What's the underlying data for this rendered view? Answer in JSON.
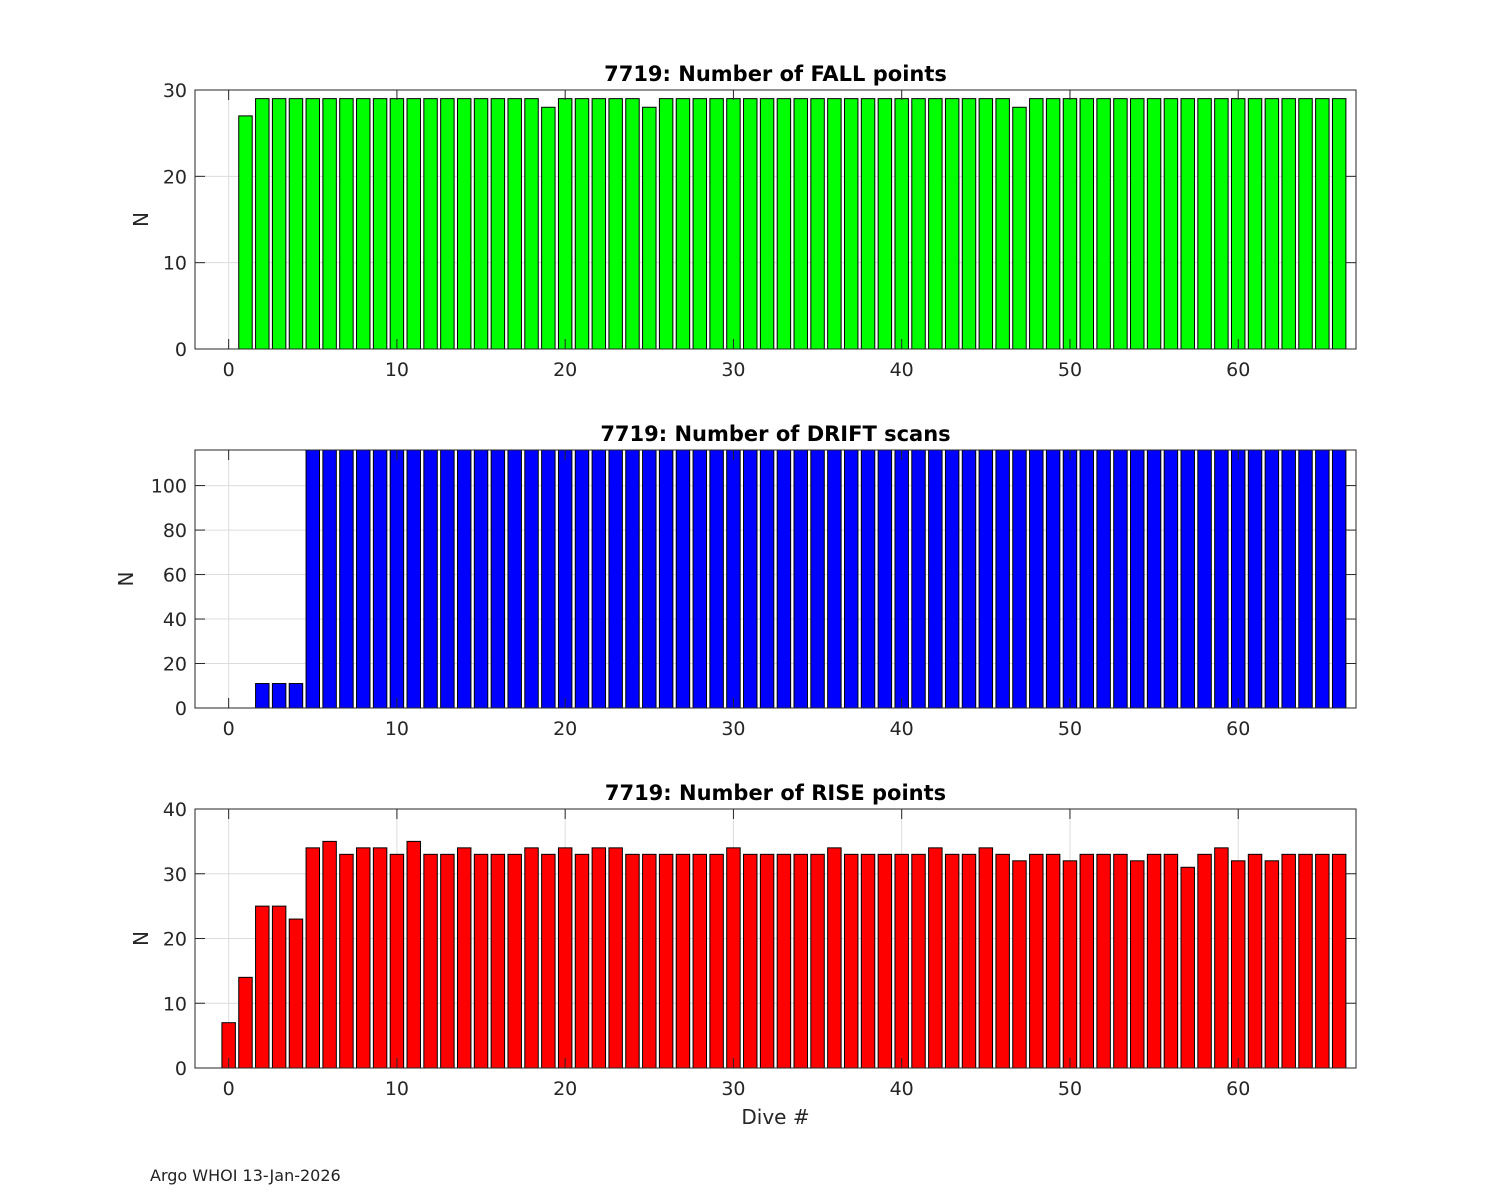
{
  "footer": "Argo WHOI 13-Jan-2026",
  "chart_data": [
    {
      "type": "bar",
      "title": "7719: Number of FALL points",
      "xlabel": "",
      "ylabel": "N",
      "xlim": [
        -2,
        67
      ],
      "ylim": [
        0,
        30
      ],
      "xticks": [
        0,
        10,
        20,
        30,
        40,
        50,
        60
      ],
      "yticks": [
        0,
        10,
        20,
        30
      ],
      "grid": true,
      "color": "#00ff00",
      "x": [
        1,
        2,
        3,
        4,
        5,
        6,
        7,
        8,
        9,
        10,
        11,
        12,
        13,
        14,
        15,
        16,
        17,
        18,
        19,
        20,
        21,
        22,
        23,
        24,
        25,
        26,
        27,
        28,
        29,
        30,
        31,
        32,
        33,
        34,
        35,
        36,
        37,
        38,
        39,
        40,
        41,
        42,
        43,
        44,
        45,
        46,
        47,
        48,
        49,
        50,
        51,
        52,
        53,
        54,
        55,
        56,
        57,
        58,
        59,
        60,
        61,
        62,
        63,
        64,
        65,
        66
      ],
      "values": [
        27,
        29,
        29,
        29,
        29,
        29,
        29,
        29,
        29,
        29,
        29,
        29,
        29,
        29,
        29,
        29,
        29,
        29,
        28,
        29,
        29,
        29,
        29,
        29,
        28,
        29,
        29,
        29,
        29,
        29,
        29,
        29,
        29,
        29,
        29,
        29,
        29,
        29,
        29,
        29,
        29,
        29,
        29,
        29,
        29,
        29,
        28,
        29,
        29,
        29,
        29,
        29,
        29,
        29,
        29,
        29,
        29,
        29,
        29,
        29,
        29,
        29,
        29,
        29,
        29,
        29
      ]
    },
    {
      "type": "bar",
      "title": "7719: Number of DRIFT scans",
      "xlabel": "",
      "ylabel": "N",
      "xlim": [
        -2,
        67
      ],
      "ylim": [
        0,
        116
      ],
      "xticks": [
        0,
        10,
        20,
        30,
        40,
        50,
        60
      ],
      "yticks": [
        0,
        20,
        40,
        60,
        80,
        100
      ],
      "grid": true,
      "color": "#0000ff",
      "x": [
        -1,
        0,
        1,
        2,
        3,
        4,
        5,
        6,
        7,
        8,
        9,
        10,
        11,
        12,
        13,
        14,
        15,
        16,
        17,
        18,
        19,
        20,
        21,
        22,
        23,
        24,
        25,
        26,
        27,
        28,
        29,
        30,
        31,
        32,
        33,
        34,
        35,
        36,
        37,
        38,
        39,
        40,
        41,
        42,
        43,
        44,
        45,
        46,
        47,
        48,
        49,
        50,
        51,
        52,
        53,
        54,
        55,
        56,
        57,
        58,
        59,
        60,
        61,
        62,
        63,
        64,
        65,
        66
      ],
      "values": [
        0,
        0,
        0,
        11,
        11,
        11,
        120,
        120,
        120,
        120,
        120,
        120,
        120,
        120,
        120,
        120,
        120,
        120,
        120,
        120,
        120,
        120,
        120,
        120,
        120,
        120,
        120,
        120,
        120,
        120,
        120,
        120,
        120,
        120,
        120,
        120,
        120,
        120,
        120,
        120,
        120,
        120,
        120,
        120,
        120,
        120,
        120,
        120,
        120,
        120,
        120,
        120,
        120,
        120,
        120,
        120,
        120,
        120,
        120,
        120,
        120,
        120,
        120,
        120,
        120,
        120,
        120,
        120
      ]
    },
    {
      "type": "bar",
      "title": "7719: Number of RISE points",
      "xlabel": "Dive #",
      "ylabel": "N",
      "xlim": [
        -2,
        67
      ],
      "ylim": [
        0,
        40
      ],
      "xticks": [
        0,
        10,
        20,
        30,
        40,
        50,
        60
      ],
      "yticks": [
        0,
        10,
        20,
        30,
        40
      ],
      "grid": true,
      "color": "#ff0000",
      "x": [
        0,
        1,
        2,
        3,
        4,
        5,
        6,
        7,
        8,
        9,
        10,
        11,
        12,
        13,
        14,
        15,
        16,
        17,
        18,
        19,
        20,
        21,
        22,
        23,
        24,
        25,
        26,
        27,
        28,
        29,
        30,
        31,
        32,
        33,
        34,
        35,
        36,
        37,
        38,
        39,
        40,
        41,
        42,
        43,
        44,
        45,
        46,
        47,
        48,
        49,
        50,
        51,
        52,
        53,
        54,
        55,
        56,
        57,
        58,
        59,
        60,
        61,
        62,
        63,
        64,
        65,
        66
      ],
      "values": [
        7,
        14,
        25,
        25,
        23,
        34,
        35,
        33,
        34,
        34,
        33,
        35,
        33,
        33,
        34,
        33,
        33,
        33,
        34,
        33,
        34,
        33,
        34,
        34,
        33,
        33,
        33,
        33,
        33,
        33,
        34,
        33,
        33,
        33,
        33,
        33,
        34,
        33,
        33,
        33,
        33,
        33,
        34,
        33,
        33,
        34,
        33,
        32,
        33,
        33,
        32,
        33,
        33,
        33,
        32,
        33,
        33,
        31,
        33,
        34,
        32,
        33,
        32,
        33,
        33,
        33,
        33
      ]
    }
  ]
}
